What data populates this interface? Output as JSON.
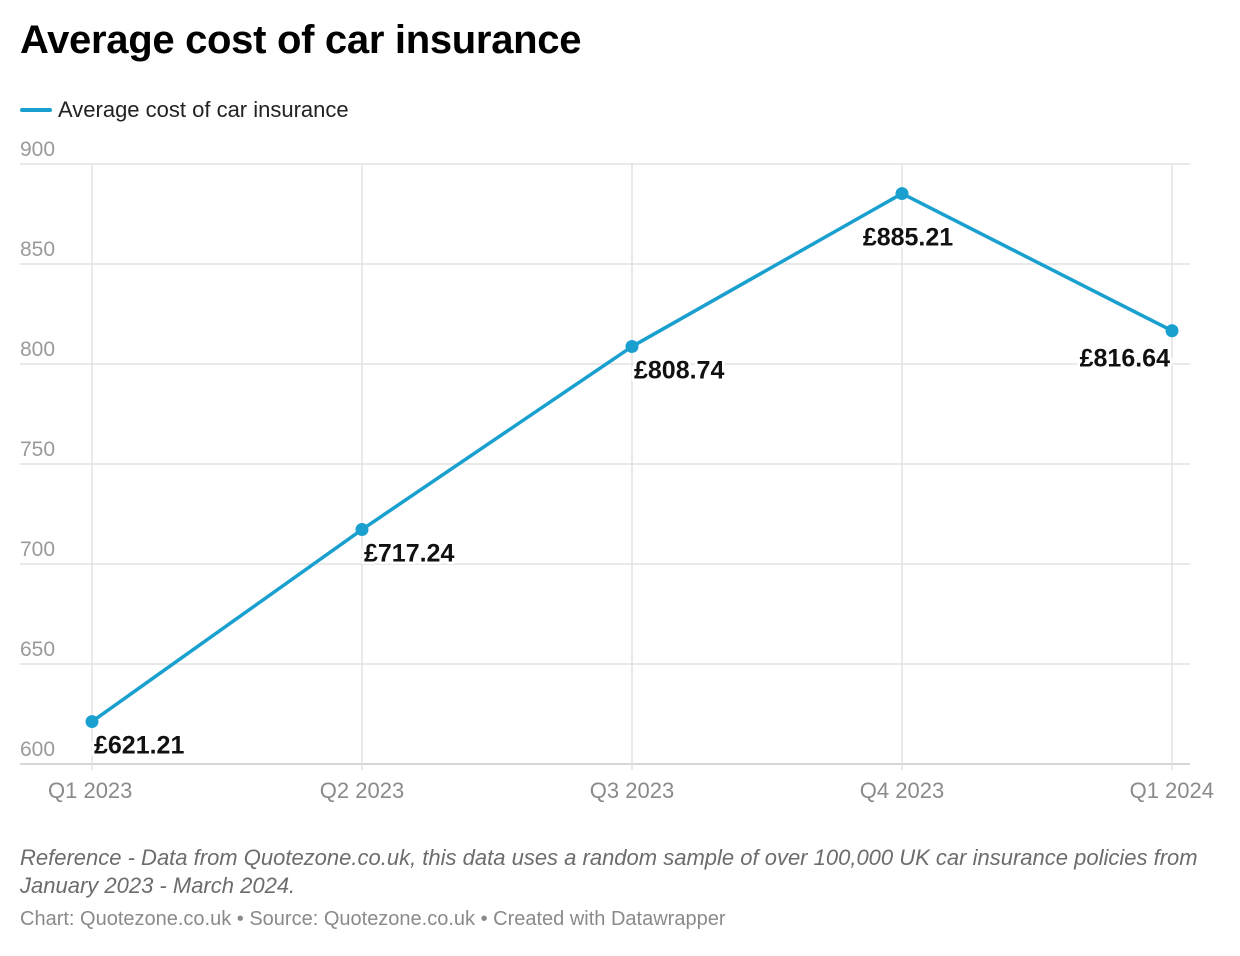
{
  "chart_data": {
    "type": "line",
    "title": "Average cost of car insurance",
    "categories": [
      "Q1 2023",
      "Q2 2023",
      "Q3 2023",
      "Q4 2023",
      "Q1 2024"
    ],
    "series": [
      {
        "name": "Average cost of car insurance",
        "values": [
          621.21,
          717.24,
          808.74,
          885.21,
          816.64
        ],
        "labels": [
          "£621.21",
          "£717.24",
          "£808.74",
          "£885.21",
          "£816.64"
        ],
        "color": "#1aa0cf"
      }
    ],
    "ylim": [
      600,
      900
    ],
    "yticks": [
      "600",
      "650",
      "700",
      "750",
      "800",
      "850",
      "900"
    ],
    "xlabel": "",
    "ylabel": "",
    "grid": true,
    "legend": "top-left"
  },
  "notes": "Reference - Data from Quotezone.co.uk, this data uses a random sample of over 100,000 UK car insurance policies from January 2023 - March 2024.",
  "footer": "Chart: Quotezone.co.uk • Source: Quotezone.co.uk • Created with Datawrapper"
}
